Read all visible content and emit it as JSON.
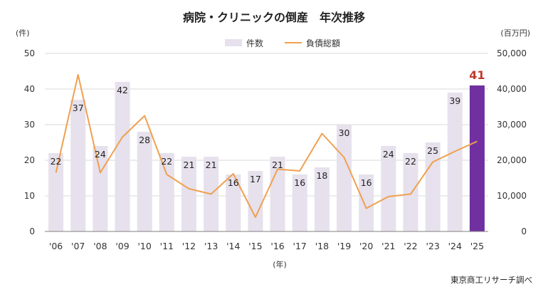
{
  "chart_data": {
    "type": "bar+line",
    "title": "病院・クリニックの倒産　年次推移",
    "categories": [
      "'06",
      "'07",
      "'08",
      "'09",
      "'10",
      "'11",
      "'12",
      "'13",
      "'14",
      "'15",
      "'16",
      "'17",
      "'18",
      "'19",
      "'20",
      "'21",
      "'22",
      "'23",
      "'24",
      "'25"
    ],
    "series": [
      {
        "name": "件数",
        "type": "bar",
        "axis": "left",
        "values": [
          22,
          37,
          24,
          42,
          28,
          22,
          21,
          21,
          16,
          17,
          21,
          16,
          18,
          30,
          16,
          24,
          22,
          25,
          39,
          41
        ],
        "highlight_index": 19
      },
      {
        "name": "負債総額",
        "type": "line",
        "axis": "right",
        "values": [
          16500,
          44000,
          16500,
          26500,
          32500,
          16000,
          12000,
          10500,
          16200,
          4000,
          17500,
          17000,
          27500,
          20800,
          6500,
          9800,
          10500,
          19500,
          22500,
          25300
        ]
      }
    ],
    "left_axis": {
      "label": "(件)",
      "ylim": [
        0,
        50
      ],
      "ticks": [
        "0",
        "10",
        "20",
        "30",
        "40",
        "50"
      ]
    },
    "right_axis": {
      "label": "(百万円)",
      "ylim": [
        0,
        50000
      ],
      "ticks": [
        "0",
        "10,000",
        "20,000",
        "30,000",
        "40,000",
        "50,000"
      ]
    },
    "xlabel": "(年)",
    "legend": {
      "position": "top",
      "entries": [
        "件数",
        "負債総額"
      ]
    },
    "grid": true,
    "source": "東京商工リサーチ調べ",
    "colors": {
      "bar": "#e6e1ec",
      "bar_highlight": "#7030a0",
      "line": "#f0a050",
      "highlight_label": "#c0392b"
    }
  }
}
